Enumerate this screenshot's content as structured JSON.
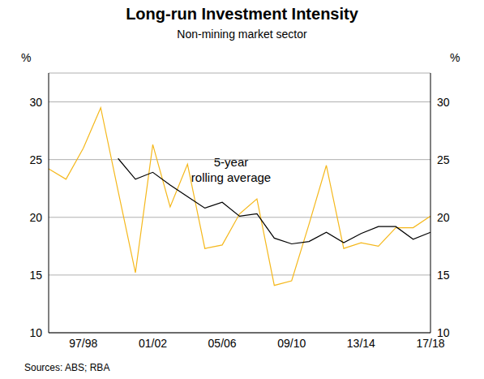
{
  "chart_data": {
    "type": "line",
    "title": "Long-run Investment Intensity",
    "subtitle": "Non-mining market sector",
    "y_label": "%",
    "y2_label": "%",
    "source": "Sources: ABS; RBA",
    "categories": [
      null,
      null,
      "97/98",
      null,
      null,
      null,
      "01/02",
      null,
      null,
      null,
      "05/06",
      null,
      null,
      null,
      "09/10",
      null,
      null,
      null,
      "13/14",
      null,
      null,
      null,
      "17/18"
    ],
    "series": [
      {
        "color": "#f5b81c",
        "values": [
          24.2,
          23.3,
          26.0,
          29.5,
          22.3,
          15.2,
          26.3,
          20.9,
          24.6,
          17.3,
          17.6,
          20.3,
          21.6,
          14.1,
          14.5,
          19.4,
          24.5,
          17.3,
          17.8,
          17.5,
          19.1,
          19.1,
          20.1
        ]
      },
      {
        "name": "5-year rolling average",
        "color": "#000000",
        "values": [
          null,
          null,
          null,
          null,
          25.1,
          23.3,
          23.9,
          22.8,
          21.8,
          20.8,
          21.3,
          20.1,
          20.3,
          18.2,
          17.7,
          17.9,
          18.7,
          17.8,
          18.6,
          19.2,
          19.2,
          18.1,
          18.7
        ]
      }
    ],
    "ylim": [
      10,
      32.5
    ],
    "yticks": [
      10,
      15,
      20,
      25,
      30
    ],
    "y2lim": [
      10,
      32.5
    ],
    "y2ticks": [
      10,
      15,
      20,
      25,
      30
    ],
    "grid": true
  }
}
